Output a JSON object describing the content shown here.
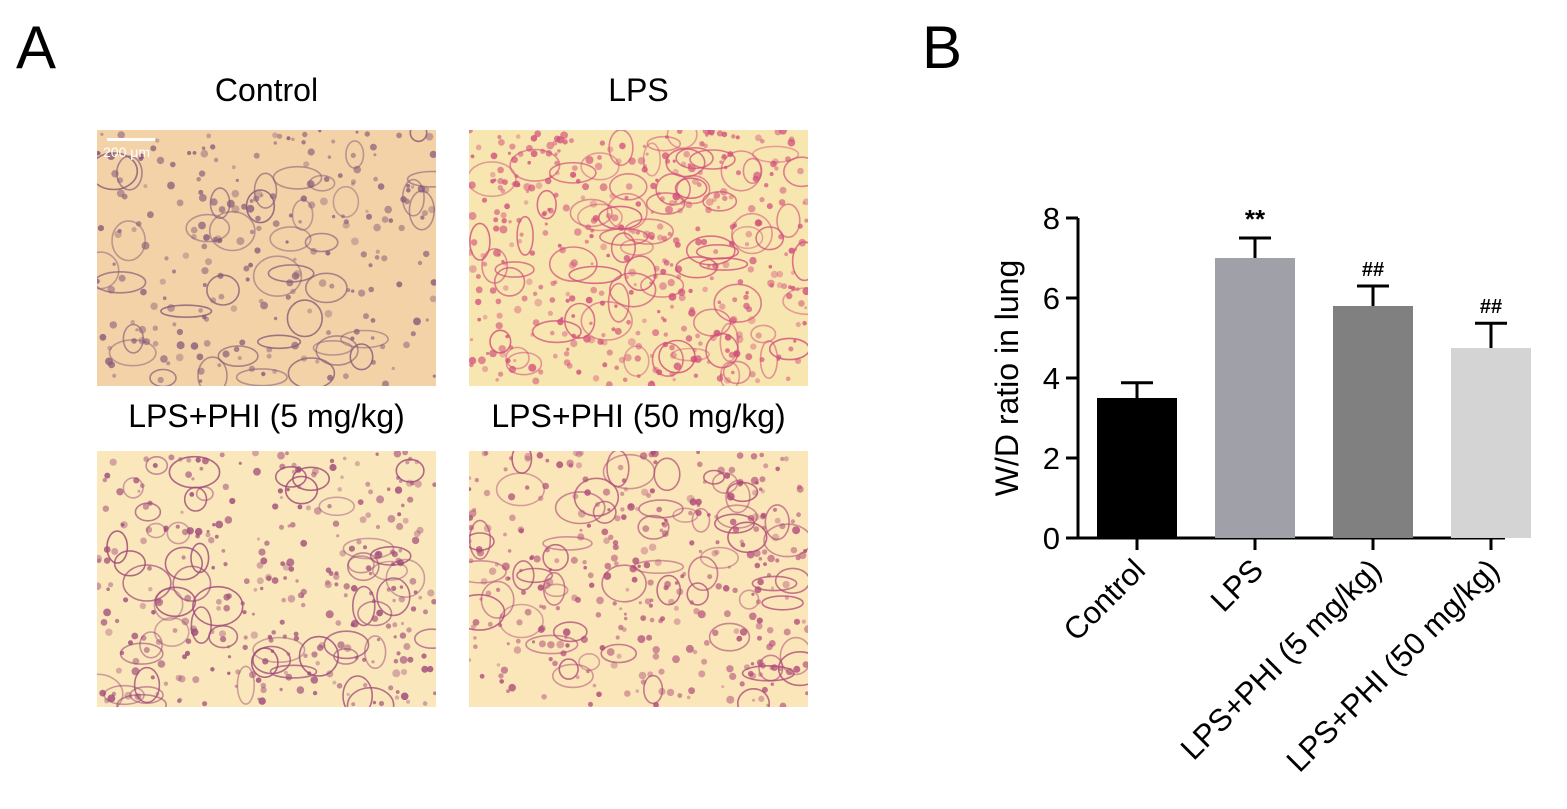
{
  "panels": {
    "a_label": "A",
    "b_label": "B"
  },
  "micrographs": [
    {
      "caption": "Control",
      "scale_label": "200 μm",
      "tone": "control"
    },
    {
      "caption": "LPS",
      "tone": "lps"
    },
    {
      "caption": "LPS+PHI (5 mg/kg)",
      "tone": "phi5"
    },
    {
      "caption": "LPS+PHI (50 mg/kg)",
      "tone": "phi50"
    }
  ],
  "colors": {
    "control_bg": "#f2d2a6",
    "control_tissue": "#8a5a7a",
    "lps_bg": "#f8e6b0",
    "lps_tissue": "#d2507a",
    "phi5_bg": "#fae8bc",
    "phi5_tissue": "#a04a78",
    "phi50_bg": "#fae6b8",
    "phi50_tissue": "#b04c78"
  },
  "chart_data": {
    "type": "bar",
    "categories": [
      "Control",
      "LPS",
      "LPS+PHI (5 mg/kg)",
      "LPS+PHI (50 mg/kg)"
    ],
    "values": [
      3.5,
      7.0,
      5.8,
      4.75
    ],
    "errors": [
      0.38,
      0.5,
      0.5,
      0.62
    ],
    "bar_colors": [
      "#000000",
      "#a0a0a8",
      "#808080",
      "#d4d4d4"
    ],
    "annotations": [
      "",
      "**",
      "##",
      "##"
    ],
    "ylabel": "W/D ratio in lung",
    "xlabel": "",
    "ylim": [
      0,
      8
    ],
    "yticks": [
      0,
      2,
      4,
      6,
      8
    ],
    "grid": false
  }
}
